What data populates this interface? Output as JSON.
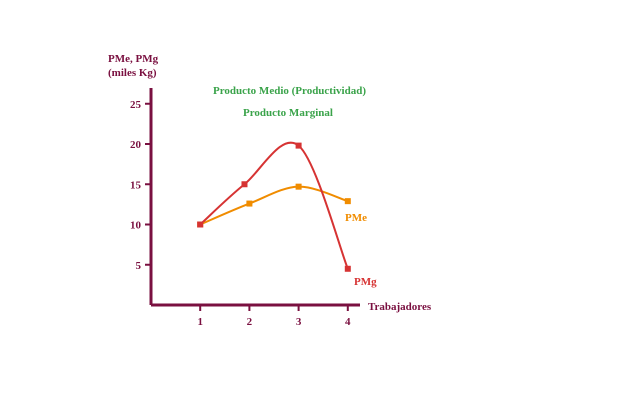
{
  "chart_data": {
    "type": "line",
    "ylabel_line1": "PMe, PMg",
    "ylabel_line2": "(miles Kg)",
    "xlabel": "Trabajadores",
    "legend": [
      "Producto Medio (Productividad)",
      "Producto Marginal"
    ],
    "x_ticks": [
      1,
      2,
      3,
      4
    ],
    "y_ticks": [
      5,
      10,
      15,
      20,
      25
    ],
    "xlim": [
      0,
      4.3
    ],
    "ylim": [
      0,
      27
    ],
    "series": [
      {
        "name": "PMe",
        "color": "#f08c00",
        "x": [
          1,
          2,
          3,
          4
        ],
        "y": [
          10,
          12.6,
          14.7,
          12.9
        ]
      },
      {
        "name": "PMg",
        "color": "#d63333",
        "x": [
          1,
          1.9,
          3,
          4
        ],
        "y": [
          10,
          15,
          19.8,
          4.5
        ]
      }
    ],
    "colors": {
      "axis": "#7a1040",
      "legend_text": "#3aa34a"
    }
  }
}
